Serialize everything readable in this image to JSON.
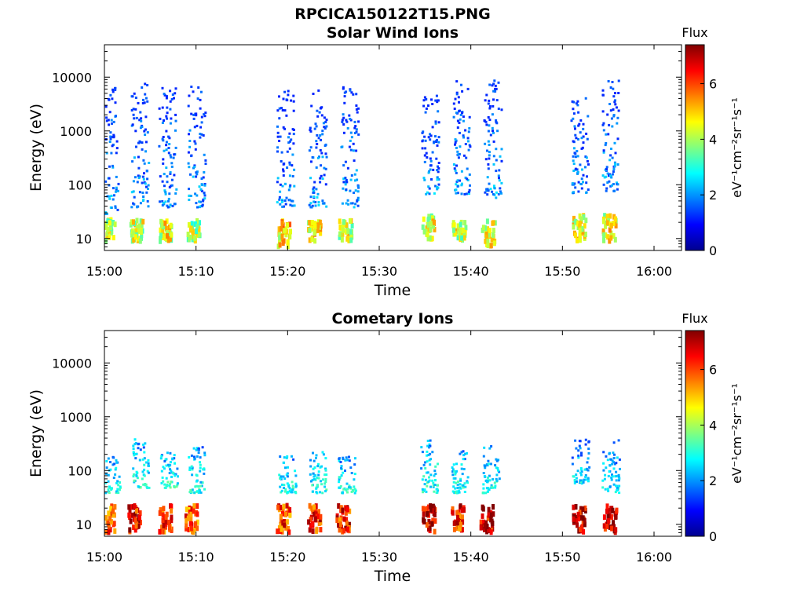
{
  "figure": {
    "title": "RPCICA150122T15.PNG"
  },
  "colormap": [
    "#00008f",
    "#0000ff",
    "#0080ff",
    "#00ffff",
    "#80ff80",
    "#ffff00",
    "#ff8000",
    "#ff0000",
    "#800000"
  ],
  "chart_data": [
    {
      "type": "heatmap",
      "title": "Solar Wind Ions",
      "xlabel": "Time",
      "ylabel": "Energy (eV)",
      "y_scale": "log",
      "xlim": [
        "15:00",
        "16:03"
      ],
      "ylim": [
        6,
        40000
      ],
      "x_ticks": [
        "15:00",
        "15:10",
        "15:20",
        "15:30",
        "15:40",
        "15:50",
        "16:00"
      ],
      "y_ticks": [
        "10",
        "100",
        "1000",
        "10000"
      ],
      "colorbar": {
        "label": "Flux",
        "units": "eV⁻¹cm⁻²sr⁻¹s⁻¹",
        "range": [
          0,
          7.4
        ],
        "ticks": [
          "0",
          "2",
          "4",
          "6"
        ]
      },
      "bursts": [
        {
          "time": "15:00.3",
          "e_low": 10,
          "e_high": 25,
          "flux": 4.2
        },
        {
          "time": "15:00.5",
          "e_low": 30,
          "e_high": 7000,
          "flux": 2.0
        },
        {
          "time": "15:03.4",
          "e_low": 10,
          "e_high": 25,
          "flux": 4.2
        },
        {
          "time": "15:03.8",
          "e_low": 40,
          "e_high": 8000,
          "flux": 2.0
        },
        {
          "time": "15:06.6",
          "e_low": 10,
          "e_high": 25,
          "flux": 4.5
        },
        {
          "time": "15:06.8",
          "e_low": 40,
          "e_high": 8000,
          "flux": 2.0
        },
        {
          "time": "15:09.6",
          "e_low": 10,
          "e_high": 25,
          "flux": 4.0
        },
        {
          "time": "15:10.0",
          "e_low": 40,
          "e_high": 7000,
          "flux": 2.0
        },
        {
          "time": "15:19.5",
          "e_low": 8,
          "e_high": 25,
          "flux": 4.8
        },
        {
          "time": "15:19.7",
          "e_low": 40,
          "e_high": 6000,
          "flux": 2.0
        },
        {
          "time": "15:22.8",
          "e_low": 10,
          "e_high": 25,
          "flux": 4.6
        },
        {
          "time": "15:23.2",
          "e_low": 40,
          "e_high": 6000,
          "flux": 2.0
        },
        {
          "time": "15:26.2",
          "e_low": 10,
          "e_high": 25,
          "flux": 4.2
        },
        {
          "time": "15:26.7",
          "e_low": 40,
          "e_high": 7000,
          "flux": 2.0
        },
        {
          "time": "15:35.2",
          "e_low": 10,
          "e_high": 30,
          "flux": 4.4
        },
        {
          "time": "15:35.5",
          "e_low": 70,
          "e_high": 5000,
          "flux": 2.0
        },
        {
          "time": "15:38.6",
          "e_low": 10,
          "e_high": 25,
          "flux": 4.2
        },
        {
          "time": "15:38.9",
          "e_low": 70,
          "e_high": 9000,
          "flux": 2.0
        },
        {
          "time": "15:41.8",
          "e_low": 8,
          "e_high": 25,
          "flux": 4.4
        },
        {
          "time": "15:42.3",
          "e_low": 60,
          "e_high": 10000,
          "flux": 2.0
        },
        {
          "time": "15:51.7",
          "e_low": 10,
          "e_high": 30,
          "flux": 4.5
        },
        {
          "time": "15:51.8",
          "e_low": 70,
          "e_high": 5000,
          "flux": 2.0
        },
        {
          "time": "15:55.0",
          "e_low": 10,
          "e_high": 30,
          "flux": 4.5
        },
        {
          "time": "15:55.2",
          "e_low": 80,
          "e_high": 9000,
          "flux": 2.0
        }
      ]
    },
    {
      "type": "heatmap",
      "title": "Cometary Ions",
      "xlabel": "Time",
      "ylabel": "Energy (eV)",
      "y_scale": "log",
      "xlim": [
        "15:00",
        "16:03"
      ],
      "ylim": [
        6,
        40000
      ],
      "x_ticks": [
        "15:00",
        "15:10",
        "15:20",
        "15:30",
        "15:40",
        "15:50",
        "16:00"
      ],
      "y_ticks": [
        "10",
        "100",
        "1000",
        "10000"
      ],
      "colorbar": {
        "label": "Flux",
        "units": "eV⁻¹cm⁻²sr⁻¹s⁻¹",
        "range": [
          0,
          7.4
        ],
        "ticks": [
          "0",
          "2",
          "4",
          "6"
        ]
      },
      "bursts": [
        {
          "time": "15:00.3",
          "e_low": 8,
          "e_high": 25,
          "flux": 6.0
        },
        {
          "time": "15:00.7",
          "e_low": 40,
          "e_high": 200,
          "flux": 3.0
        },
        {
          "time": "15:03.2",
          "e_low": 8,
          "e_high": 25,
          "flux": 6.5
        },
        {
          "time": "15:03.9",
          "e_low": 50,
          "e_high": 400,
          "flux": 3.0
        },
        {
          "time": "15:06.5",
          "e_low": 8,
          "e_high": 25,
          "flux": 6.0
        },
        {
          "time": "15:07.0",
          "e_low": 50,
          "e_high": 250,
          "flux": 3.0
        },
        {
          "time": "15:09.4",
          "e_low": 8,
          "e_high": 25,
          "flux": 5.8
        },
        {
          "time": "15:10.0",
          "e_low": 40,
          "e_high": 300,
          "flux": 3.0
        },
        {
          "time": "15:19.4",
          "e_low": 8,
          "e_high": 25,
          "flux": 6.0
        },
        {
          "time": "15:19.9",
          "e_low": 40,
          "e_high": 200,
          "flux": 3.0
        },
        {
          "time": "15:22.8",
          "e_low": 8,
          "e_high": 25,
          "flux": 6.3
        },
        {
          "time": "15:23.2",
          "e_low": 40,
          "e_high": 250,
          "flux": 3.0
        },
        {
          "time": "15:25.9",
          "e_low": 8,
          "e_high": 25,
          "flux": 6.3
        },
        {
          "time": "15:26.4",
          "e_low": 40,
          "e_high": 200,
          "flux": 3.0
        },
        {
          "time": "15:35.3",
          "e_low": 8,
          "e_high": 25,
          "flux": 6.8
        },
        {
          "time": "15:35.4",
          "e_low": 40,
          "e_high": 400,
          "flux": 3.0
        },
        {
          "time": "15:38.4",
          "e_low": 8,
          "e_high": 25,
          "flux": 6.3
        },
        {
          "time": "15:38.8",
          "e_low": 40,
          "e_high": 250,
          "flux": 3.0
        },
        {
          "time": "15:41.6",
          "e_low": 8,
          "e_high": 25,
          "flux": 6.8
        },
        {
          "time": "15:42.1",
          "e_low": 40,
          "e_high": 300,
          "flux": 3.0
        },
        {
          "time": "15:51.7",
          "e_low": 8,
          "e_high": 25,
          "flux": 6.8
        },
        {
          "time": "15:51.9",
          "e_low": 60,
          "e_high": 400,
          "flux": 2.6
        },
        {
          "time": "15:55.1",
          "e_low": 8,
          "e_high": 25,
          "flux": 6.8
        },
        {
          "time": "15:55.2",
          "e_low": 40,
          "e_high": 400,
          "flux": 2.6
        }
      ]
    }
  ]
}
